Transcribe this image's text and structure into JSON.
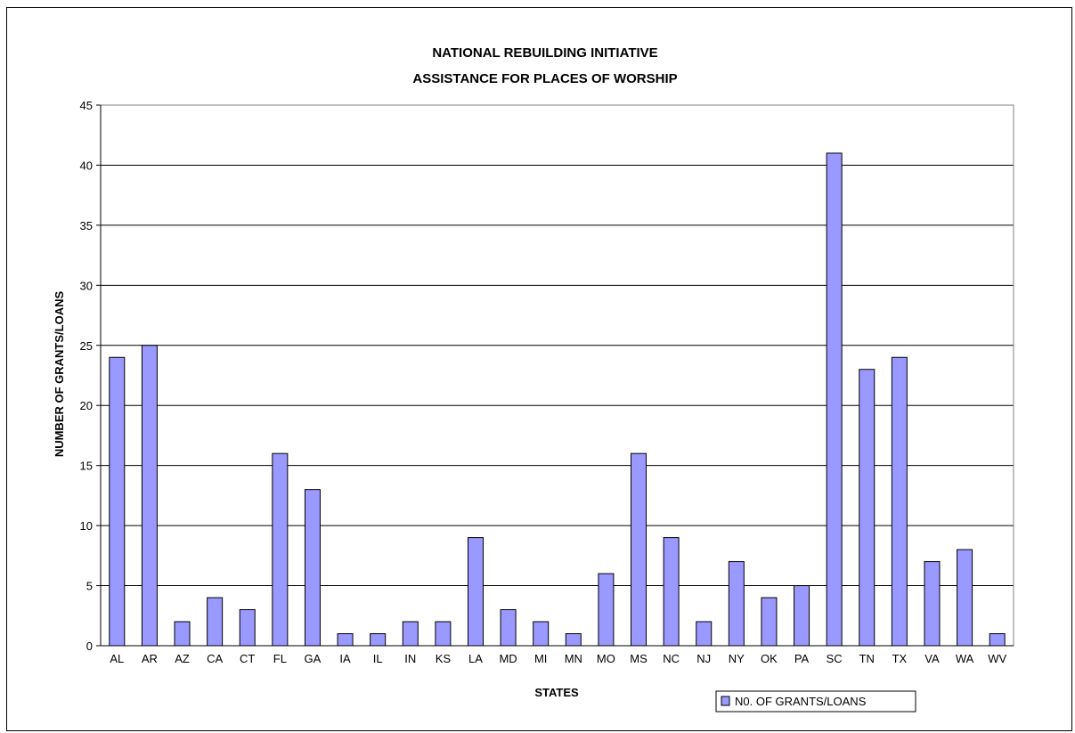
{
  "chart_data": {
    "type": "bar",
    "title_lines": [
      "NATIONAL REBUILDING INITIATIVE",
      "ASSISTANCE FOR PLACES OF WORSHIP"
    ],
    "xlabel": "STATES",
    "ylabel": "NUMBER OF GRANTS/LOANS",
    "categories": [
      "AL",
      "AR",
      "AZ",
      "CA",
      "CT",
      "FL",
      "GA",
      "IA",
      "IL",
      "IN",
      "KS",
      "LA",
      "MD",
      "MI",
      "MN",
      "MO",
      "MS",
      "NC",
      "NJ",
      "NY",
      "OK",
      "PA",
      "SC",
      "TN",
      "TX",
      "VA",
      "WA",
      "WV"
    ],
    "series": [
      {
        "name": "N0. OF GRANTS/LOANS",
        "values": [
          24,
          25,
          2,
          4,
          3,
          16,
          13,
          1,
          1,
          2,
          2,
          9,
          3,
          2,
          1,
          6,
          16,
          9,
          2,
          7,
          4,
          5,
          41,
          23,
          24,
          7,
          8,
          1
        ]
      }
    ],
    "ylim": [
      0,
      45
    ],
    "yticks": [
      0,
      5,
      10,
      15,
      20,
      25,
      30,
      35,
      40,
      45
    ],
    "grid": "horizontal",
    "legend_position": "bottom-right",
    "colors": {
      "bar": "#9999FF",
      "bar_stroke": "#000000",
      "grid": "#000000"
    }
  }
}
